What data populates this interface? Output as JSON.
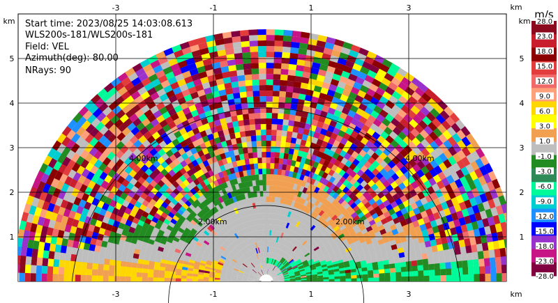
{
  "info": {
    "start_time": "Start time: 2023/08/25 14:03:08.613",
    "instrument": "WLS200s-181/WLS200s-181",
    "field": "Field: VEL",
    "azimuth": "Azimuth(deg): 80.00",
    "nrays": "NRays: 90"
  },
  "axes": {
    "x_unit": "km",
    "y_unit": "km",
    "x_ticks": [
      "-3",
      "-1",
      "1",
      "3"
    ],
    "y_ticks": [
      "1",
      "2",
      "3",
      "4",
      "5"
    ]
  },
  "range_rings": {
    "inner": "2.00km",
    "outer": "4.00km"
  },
  "colorbar": {
    "units": "m/s",
    "labels": [
      "28.0",
      "23.0",
      "18.0",
      "15.0",
      "12.0",
      "9.0",
      "6.0",
      "3.0",
      "1.0",
      "-1.0",
      "-3.0",
      "-6.0",
      "-9.0",
      "-12.0",
      "-15.0",
      "-18.0",
      "-23.0",
      "-28.0"
    ],
    "colors": [
      "#8b0a1e",
      "#c81e2d",
      "#8b0000",
      "#e23c3c",
      "#f06a6a",
      "#ffa07a",
      "#ffd700",
      "#ffff00",
      "#f0a050",
      "#bebebe",
      "#228b22",
      "#2e8b57",
      "#00fa9a",
      "#00ced1",
      "#1e90ff",
      "#0000ff",
      "#9932cc",
      "#c71585",
      "#800040"
    ]
  },
  "field": {
    "noise_colors": [
      "#8b0a1e",
      "#c81e2d",
      "#e23c3c",
      "#f06a6a",
      "#ffa07a",
      "#ffd700",
      "#ffff00",
      "#f0a050",
      "#228b22",
      "#00fa9a",
      "#00ced1",
      "#1e90ff",
      "#0000ff",
      "#9932cc",
      "#c71585",
      "#800040",
      "#8b0000"
    ]
  }
}
